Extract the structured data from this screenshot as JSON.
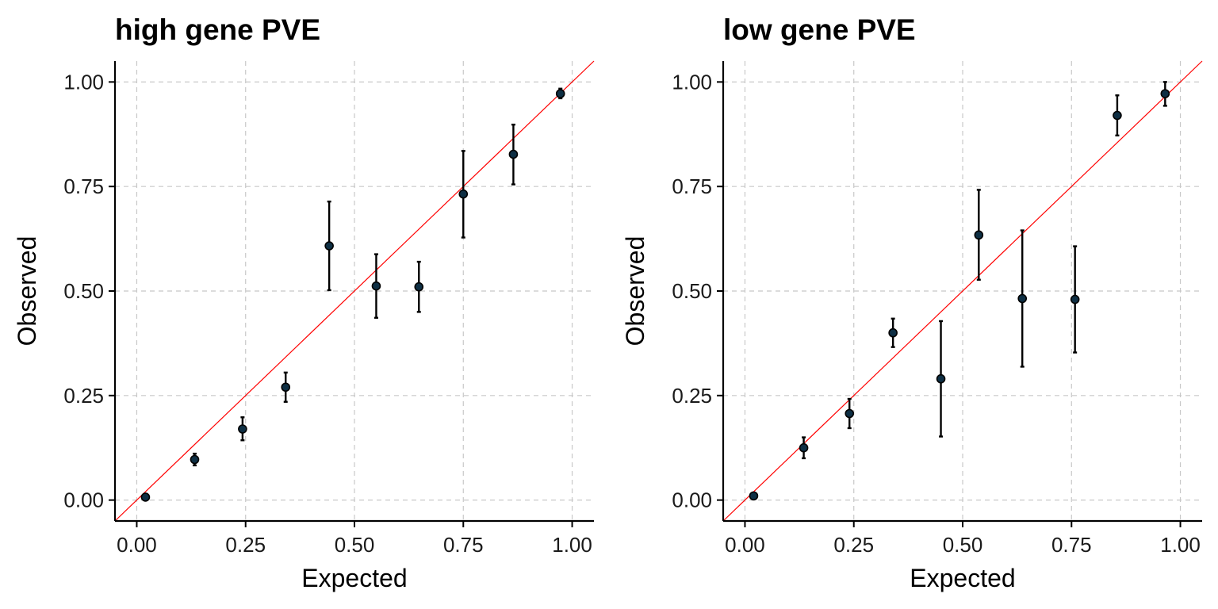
{
  "colors": {
    "point_fill": "#0e2f44",
    "reference_line": "#ff0000"
  },
  "chart_data": [
    {
      "type": "scatter",
      "title": "high gene PVE",
      "xlabel": "Expected",
      "ylabel": "Observed",
      "xlim": [
        -0.05,
        1.05
      ],
      "ylim": [
        -0.05,
        1.05
      ],
      "xticks": [
        0,
        0.25,
        0.5,
        0.75,
        1
      ],
      "xtick_labels": [
        "0.00",
        "0.25",
        "0.50",
        "0.75",
        "1.00"
      ],
      "yticks": [
        0,
        0.25,
        0.5,
        0.75,
        1
      ],
      "ytick_labels": [
        "0.00",
        "0.25",
        "0.50",
        "0.75",
        "1.00"
      ],
      "grid": true,
      "reference_line": "y = x",
      "points": [
        {
          "x": 0.02,
          "y": 0.007,
          "lo": 0.003,
          "hi": 0.011
        },
        {
          "x": 0.133,
          "y": 0.097,
          "lo": 0.083,
          "hi": 0.111
        },
        {
          "x": 0.243,
          "y": 0.17,
          "lo": 0.143,
          "hi": 0.198
        },
        {
          "x": 0.342,
          "y": 0.27,
          "lo": 0.235,
          "hi": 0.305
        },
        {
          "x": 0.442,
          "y": 0.608,
          "lo": 0.502,
          "hi": 0.714
        },
        {
          "x": 0.55,
          "y": 0.512,
          "lo": 0.436,
          "hi": 0.588
        },
        {
          "x": 0.648,
          "y": 0.51,
          "lo": 0.45,
          "hi": 0.57
        },
        {
          "x": 0.75,
          "y": 0.732,
          "lo": 0.628,
          "hi": 0.835
        },
        {
          "x": 0.865,
          "y": 0.827,
          "lo": 0.755,
          "hi": 0.898
        },
        {
          "x": 0.973,
          "y": 0.972,
          "lo": 0.961,
          "hi": 0.984
        }
      ]
    },
    {
      "type": "scatter",
      "title": "low gene PVE",
      "xlabel": "Expected",
      "ylabel": "Observed",
      "xlim": [
        -0.05,
        1.05
      ],
      "ylim": [
        -0.05,
        1.05
      ],
      "xticks": [
        0,
        0.25,
        0.5,
        0.75,
        1
      ],
      "xtick_labels": [
        "0.00",
        "0.25",
        "0.50",
        "0.75",
        "1.00"
      ],
      "yticks": [
        0,
        0.25,
        0.5,
        0.75,
        1
      ],
      "ytick_labels": [
        "0.00",
        "0.25",
        "0.50",
        "0.75",
        "1.00"
      ],
      "grid": true,
      "reference_line": "y = x",
      "points": [
        {
          "x": 0.02,
          "y": 0.01,
          "lo": 0.005,
          "hi": 0.015
        },
        {
          "x": 0.135,
          "y": 0.125,
          "lo": 0.1,
          "hi": 0.15
        },
        {
          "x": 0.24,
          "y": 0.207,
          "lo": 0.172,
          "hi": 0.242
        },
        {
          "x": 0.34,
          "y": 0.4,
          "lo": 0.366,
          "hi": 0.434
        },
        {
          "x": 0.45,
          "y": 0.29,
          "lo": 0.152,
          "hi": 0.428
        },
        {
          "x": 0.537,
          "y": 0.634,
          "lo": 0.527,
          "hi": 0.742
        },
        {
          "x": 0.637,
          "y": 0.482,
          "lo": 0.319,
          "hi": 0.645
        },
        {
          "x": 0.758,
          "y": 0.48,
          "lo": 0.353,
          "hi": 0.607
        },
        {
          "x": 0.855,
          "y": 0.92,
          "lo": 0.872,
          "hi": 0.968
        },
        {
          "x": 0.965,
          "y": 0.972,
          "lo": 0.943,
          "hi": 1.0
        }
      ]
    }
  ]
}
